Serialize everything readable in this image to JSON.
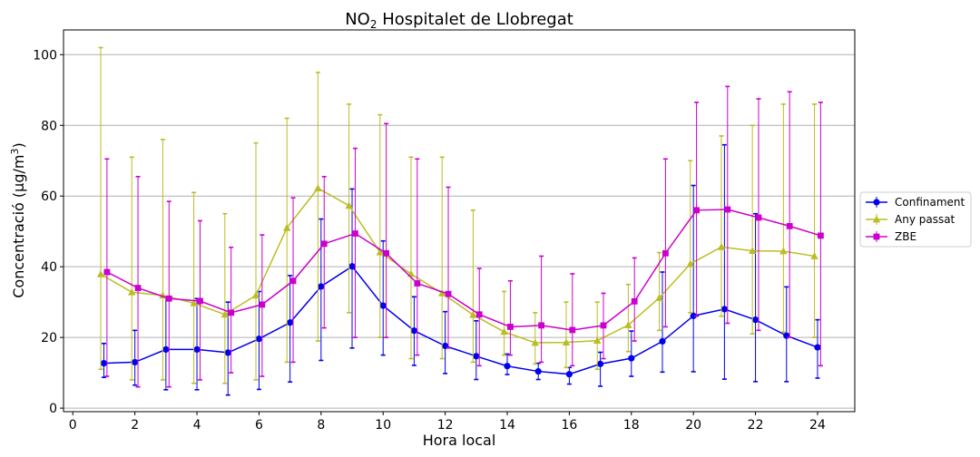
{
  "chart_data": {
    "type": "line",
    "title": "NO₂ Hospitalet de Llobregat",
    "xlabel": "Hora local",
    "ylabel": "Concentració (µg/m³)",
    "xlim": [
      -0.3,
      25.2
    ],
    "ylim": [
      -1,
      107
    ],
    "xticks": [
      0,
      2,
      4,
      6,
      8,
      10,
      12,
      14,
      16,
      18,
      20,
      22,
      24
    ],
    "yticks": [
      0,
      20,
      40,
      60,
      80,
      100
    ],
    "grid": "horizontal",
    "legend_position": "right",
    "series": [
      {
        "name": "Confinament",
        "color": "#0000ee",
        "marker": "circle",
        "x": [
          1,
          2,
          3,
          4,
          5,
          6,
          7,
          8,
          9,
          10,
          11,
          12,
          13,
          14,
          15,
          16,
          17,
          18,
          19,
          20,
          21,
          22,
          23,
          24
        ],
        "y": [
          12.7,
          13.0,
          16.6,
          16.6,
          15.7,
          19.6,
          24.2,
          34.4,
          40.1,
          29.0,
          21.9,
          17.6,
          14.7,
          11.9,
          10.4,
          9.6,
          12.5,
          14.1,
          18.9,
          26.1,
          28.0,
          25.0,
          20.5,
          17.2
        ],
        "err_low": [
          8.7,
          6.5,
          5.2,
          5.2,
          3.7,
          5.3,
          7.4,
          13.5,
          17.0,
          15.0,
          12.1,
          9.8,
          8.1,
          9.5,
          8.1,
          6.8,
          6.2,
          9.0,
          10.2,
          10.3,
          8.2,
          7.5,
          7.5,
          8.5
        ],
        "err_high": [
          18.3,
          22.0,
          31.5,
          31.0,
          30.0,
          33.0,
          37.5,
          53.5,
          62.0,
          47.3,
          31.5,
          27.3,
          24.7,
          15.3,
          12.7,
          11.5,
          15.8,
          21.8,
          38.5,
          63.0,
          74.5,
          55.0,
          34.3,
          25.0
        ]
      },
      {
        "name": "Any passat",
        "color": "#bcbd22",
        "marker": "triangle",
        "x": [
          1,
          2,
          3,
          4,
          5,
          6,
          7,
          8,
          9,
          10,
          11,
          12,
          13,
          14,
          15,
          16,
          17,
          18,
          19,
          20,
          21,
          22,
          23,
          24
        ],
        "y": [
          37.9,
          32.8,
          31.9,
          29.7,
          26.5,
          31.9,
          51.0,
          62.2,
          57.3,
          44.1,
          38.0,
          32.5,
          26.4,
          21.6,
          18.5,
          18.6,
          19.1,
          23.5,
          31.2,
          40.8,
          45.6,
          44.5,
          44.4,
          43.0
        ],
        "err_low": [
          11.0,
          8.0,
          8.0,
          7.0,
          7.0,
          8.0,
          13.0,
          19.0,
          27.0,
          20.0,
          14.0,
          14.0,
          13.0,
          15.0,
          12.5,
          11.5,
          11.0,
          16.0,
          22.0,
          27.0,
          26.0,
          21.0,
          21.5,
          20.0
        ],
        "err_high": [
          102.0,
          71.0,
          76.0,
          61.0,
          55.0,
          75.0,
          82.0,
          95.0,
          86.0,
          83.0,
          71.0,
          71.0,
          56.0,
          33.0,
          27.0,
          30.0,
          30.0,
          35.0,
          44.0,
          70.0,
          77.0,
          80.0,
          86.0,
          86.0
        ]
      },
      {
        "name": "ZBE",
        "color": "#cc00cc",
        "marker": "square",
        "x": [
          1,
          2,
          3,
          4,
          5,
          6,
          7,
          8,
          9,
          10,
          11,
          12,
          13,
          14,
          15,
          16,
          17,
          18,
          19,
          20,
          21,
          22,
          23,
          24
        ],
        "y": [
          38.5,
          34.0,
          31.0,
          30.3,
          27.0,
          29.3,
          36.0,
          46.5,
          49.4,
          43.8,
          35.3,
          32.3,
          26.5,
          23.0,
          23.4,
          22.1,
          23.4,
          30.2,
          43.8,
          56.0,
          56.2,
          53.9,
          51.5,
          48.8
        ],
        "err_low": [
          9.0,
          6.0,
          6.0,
          8.0,
          10.0,
          9.0,
          13.0,
          22.7,
          20.0,
          20.0,
          15.0,
          17.0,
          12.0,
          15.0,
          13.0,
          12.0,
          14.0,
          19.0,
          23.0,
          26.0,
          24.0,
          22.0,
          20.0,
          12.0
        ],
        "err_high": [
          70.5,
          65.5,
          58.5,
          53.0,
          45.5,
          49.0,
          59.5,
          65.5,
          73.5,
          80.5,
          70.5,
          62.5,
          39.5,
          36.0,
          43.0,
          38.0,
          32.5,
          42.5,
          70.5,
          86.5,
          91.0,
          87.5,
          89.5,
          86.5
        ]
      }
    ]
  }
}
